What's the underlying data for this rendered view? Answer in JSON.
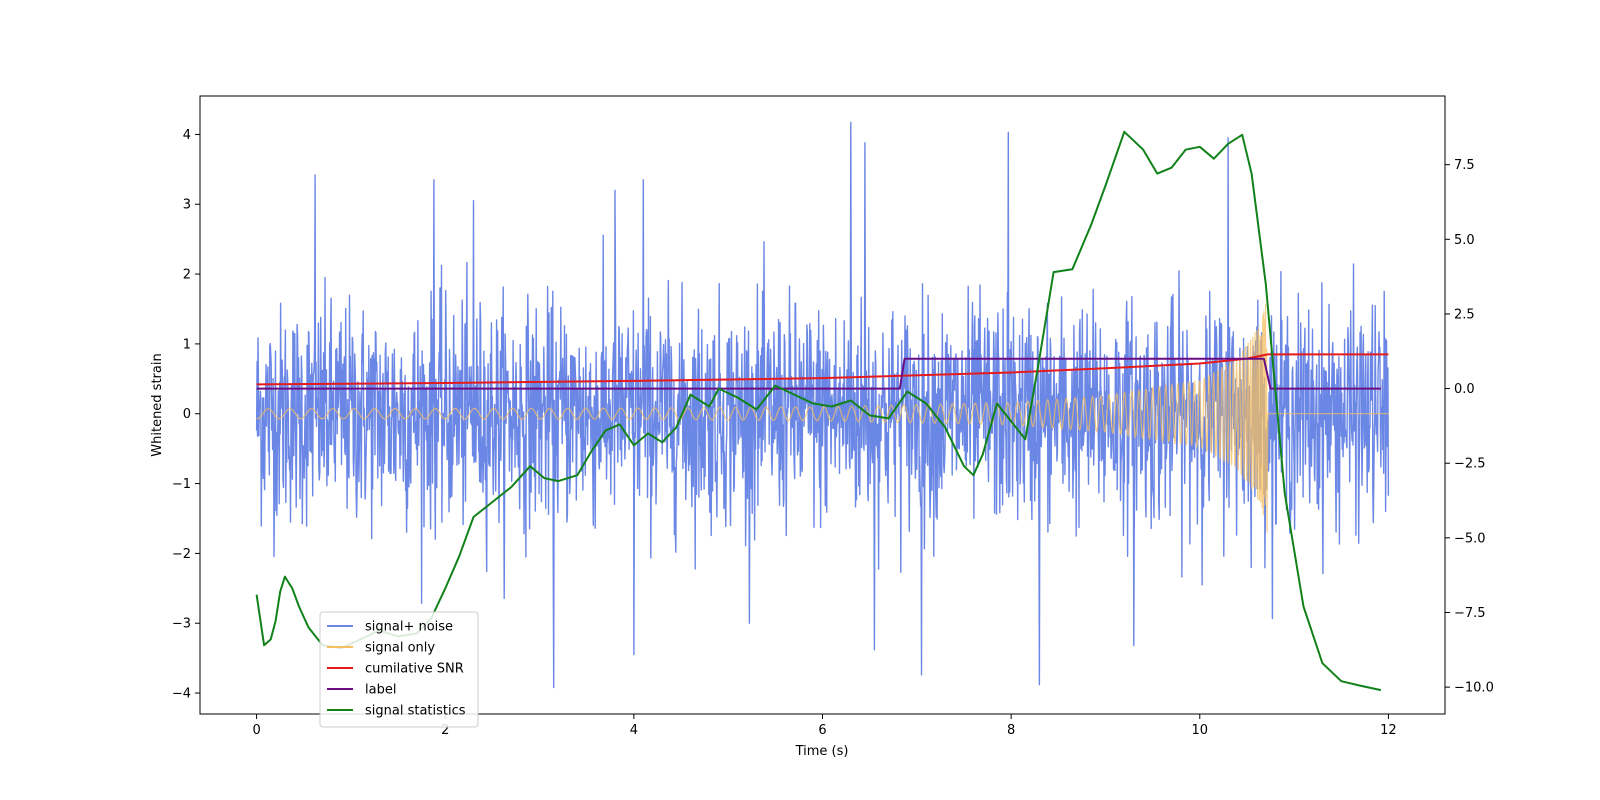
{
  "chart_data": {
    "type": "line",
    "title": "",
    "xlabel": "Time (s)",
    "ylabel": "Whitened strain",
    "y2label": "",
    "xlim": [
      -0.6,
      12.6
    ],
    "ylim": [
      -4.3,
      4.55
    ],
    "y2lim": [
      -10.9,
      9.8
    ],
    "x_ticks": [
      0,
      2,
      4,
      6,
      8,
      10,
      12
    ],
    "y_ticks": [
      -4,
      -3,
      -2,
      -1,
      0,
      1,
      2,
      3,
      4
    ],
    "y2_ticks": [
      -10.0,
      -7.5,
      -5.0,
      -2.5,
      0.0,
      2.5,
      5.0,
      7.5
    ],
    "x_tick_labels": [
      "0",
      "2",
      "4",
      "6",
      "8",
      "10",
      "12"
    ],
    "y_tick_labels": [
      "−4",
      "−3",
      "−2",
      "−1",
      "0",
      "1",
      "2",
      "3",
      "4"
    ],
    "y2_tick_labels": [
      "−10.0",
      "−7.5",
      "−5.0",
      "−2.5",
      "0.0",
      "2.5",
      "5.0",
      "7.5"
    ],
    "grid": false,
    "legend_position": "lower-left",
    "series": [
      {
        "name": "signal+ noise",
        "axis": "left",
        "color": "#6b87e6",
        "style": "noise",
        "x_range": [
          0,
          12
        ],
        "typical_amplitude": 1.6,
        "max": 4.17,
        "min": -3.92,
        "peaks": [
          {
            "x": 0.62,
            "y": 3.42
          },
          {
            "x": 1.88,
            "y": 3.35
          },
          {
            "x": 2.3,
            "y": 3.05
          },
          {
            "x": 3.8,
            "y": 3.2
          },
          {
            "x": 4.1,
            "y": 3.35
          },
          {
            "x": 6.3,
            "y": 4.17
          },
          {
            "x": 6.45,
            "y": 3.88
          },
          {
            "x": 7.97,
            "y": 4.03
          },
          {
            "x": 10.3,
            "y": 3.95
          },
          {
            "x": 3.15,
            "y": -3.92
          },
          {
            "x": 4.0,
            "y": -3.45
          },
          {
            "x": 7.05,
            "y": -3.74
          },
          {
            "x": 8.3,
            "y": -3.88
          },
          {
            "x": 9.3,
            "y": -3.32
          },
          {
            "x": 6.55,
            "y": -3.38
          }
        ]
      },
      {
        "name": "signal only",
        "axis": "left",
        "color": "#f5bf60",
        "style": "chirp",
        "x_range": [
          0,
          12
        ],
        "merger_time": 10.72,
        "envelope": [
          [
            0,
            0.07
          ],
          [
            4,
            0.08
          ],
          [
            6,
            0.1
          ],
          [
            8,
            0.16
          ],
          [
            9,
            0.26
          ],
          [
            10,
            0.48
          ],
          [
            10.4,
            0.8
          ],
          [
            10.65,
            1.3
          ],
          [
            10.72,
            1.75
          ]
        ]
      },
      {
        "name": "cumilative SNR",
        "axis": "left",
        "color": "#e41a1c",
        "style": "line",
        "points": [
          [
            0,
            0.42
          ],
          [
            2,
            0.44
          ],
          [
            4,
            0.47
          ],
          [
            6,
            0.51
          ],
          [
            8,
            0.59
          ],
          [
            9,
            0.65
          ],
          [
            10,
            0.72
          ],
          [
            10.5,
            0.79
          ],
          [
            10.72,
            0.85
          ],
          [
            12,
            0.85
          ]
        ]
      },
      {
        "name": "label",
        "axis": "right",
        "color": "#6a0d83",
        "style": "step",
        "points": [
          [
            0,
            0
          ],
          [
            6.82,
            0
          ],
          [
            6.87,
            1
          ],
          [
            10.68,
            1
          ],
          [
            10.75,
            0
          ],
          [
            11.92,
            0
          ]
        ]
      },
      {
        "name": "signal statistics",
        "axis": "right",
        "color": "#11821a",
        "style": "line",
        "points": [
          [
            0,
            -6.9
          ],
          [
            0.08,
            -8.6
          ],
          [
            0.15,
            -8.4
          ],
          [
            0.2,
            -7.8
          ],
          [
            0.25,
            -6.8
          ],
          [
            0.3,
            -6.3
          ],
          [
            0.38,
            -6.7
          ],
          [
            0.45,
            -7.3
          ],
          [
            0.55,
            -8.0
          ],
          [
            0.7,
            -8.6
          ],
          [
            0.9,
            -8.7
          ],
          [
            1.1,
            -8.4
          ],
          [
            1.3,
            -8.1
          ],
          [
            1.5,
            -8.3
          ],
          [
            1.7,
            -8.2
          ],
          [
            1.85,
            -7.7
          ],
          [
            2.0,
            -6.7
          ],
          [
            2.15,
            -5.6
          ],
          [
            2.3,
            -4.3
          ],
          [
            2.5,
            -3.8
          ],
          [
            2.7,
            -3.3
          ],
          [
            2.9,
            -2.6
          ],
          [
            3.05,
            -3.0
          ],
          [
            3.2,
            -3.1
          ],
          [
            3.4,
            -2.9
          ],
          [
            3.55,
            -2.1
          ],
          [
            3.7,
            -1.4
          ],
          [
            3.85,
            -1.2
          ],
          [
            4.0,
            -1.9
          ],
          [
            4.15,
            -1.5
          ],
          [
            4.3,
            -1.8
          ],
          [
            4.45,
            -1.3
          ],
          [
            4.6,
            -0.2
          ],
          [
            4.8,
            -0.6
          ],
          [
            4.9,
            0.0
          ],
          [
            5.1,
            -0.3
          ],
          [
            5.3,
            -0.7
          ],
          [
            5.5,
            0.1
          ],
          [
            5.7,
            -0.2
          ],
          [
            5.9,
            -0.5
          ],
          [
            6.1,
            -0.6
          ],
          [
            6.3,
            -0.4
          ],
          [
            6.5,
            -0.9
          ],
          [
            6.7,
            -1.0
          ],
          [
            6.9,
            -0.1
          ],
          [
            7.1,
            -0.5
          ],
          [
            7.3,
            -1.3
          ],
          [
            7.5,
            -2.6
          ],
          [
            7.6,
            -2.9
          ],
          [
            7.7,
            -2.2
          ],
          [
            7.85,
            -0.5
          ],
          [
            7.95,
            -0.9
          ],
          [
            8.15,
            -1.7
          ],
          [
            8.3,
            1.0
          ],
          [
            8.45,
            3.9
          ],
          [
            8.65,
            4.0
          ],
          [
            8.85,
            5.5
          ],
          [
            9.0,
            6.8
          ],
          [
            9.2,
            8.6
          ],
          [
            9.4,
            8.0
          ],
          [
            9.55,
            7.2
          ],
          [
            9.7,
            7.4
          ],
          [
            9.85,
            8.0
          ],
          [
            10.0,
            8.1
          ],
          [
            10.15,
            7.7
          ],
          [
            10.3,
            8.2
          ],
          [
            10.45,
            8.5
          ],
          [
            10.55,
            7.2
          ],
          [
            10.7,
            3.5
          ],
          [
            10.9,
            -3.5
          ],
          [
            11.1,
            -7.3
          ],
          [
            11.3,
            -9.2
          ],
          [
            11.5,
            -9.8
          ],
          [
            11.7,
            -9.95
          ],
          [
            11.92,
            -10.1
          ]
        ]
      }
    ]
  }
}
